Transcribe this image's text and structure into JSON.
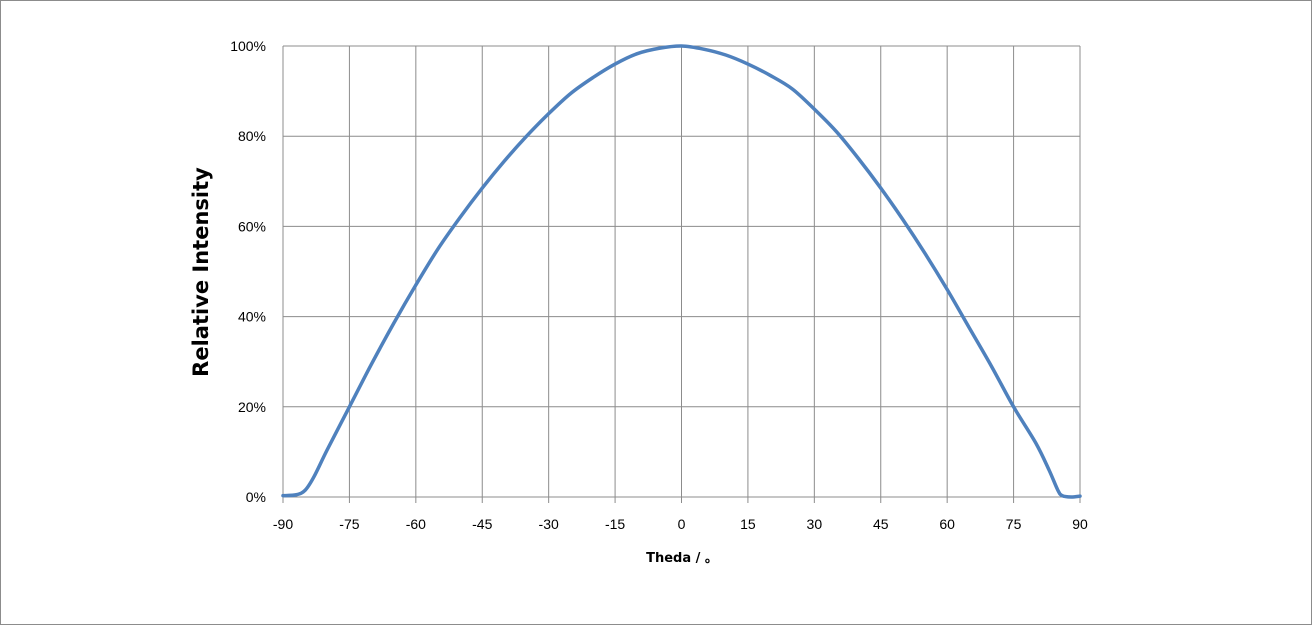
{
  "chart_data": {
    "type": "line",
    "title": "",
    "xlabel": "Theda / 。",
    "ylabel": "Relative Intensity",
    "xlim": [
      -90,
      90
    ],
    "ylim": [
      0,
      100
    ],
    "x_ticks": [
      -90,
      -75,
      -60,
      -45,
      -30,
      -15,
      0,
      15,
      30,
      45,
      60,
      75,
      90
    ],
    "x_tick_labels": [
      "-90",
      "-75",
      "-60",
      "-45",
      "-30",
      "-15",
      "0",
      "15",
      "30",
      "45",
      "60",
      "75",
      "90"
    ],
    "y_ticks": [
      0,
      20,
      40,
      60,
      80,
      100
    ],
    "y_tick_labels": [
      "0%",
      "20%",
      "40%",
      "60%",
      "80%",
      "100%"
    ],
    "grid": true,
    "legend": "none",
    "series_color": "#4f81bd",
    "series": [
      {
        "x": [
          -90,
          -87,
          -85,
          -83,
          -80,
          -75,
          -70,
          -65,
          -60,
          -55,
          -50,
          -45,
          -40,
          -35,
          -30,
          -25,
          -20,
          -15,
          -10,
          -5,
          0,
          5,
          10,
          15,
          20,
          25,
          30,
          35,
          40,
          45,
          50,
          55,
          60,
          65,
          70,
          75,
          80,
          83,
          85,
          86,
          88,
          90
        ],
        "y": [
          0.3,
          0.5,
          1.5,
          4.5,
          10.5,
          20,
          29.5,
          38.5,
          47,
          55,
          62,
          68.5,
          74.5,
          80,
          85,
          89.5,
          93,
          96,
          98.3,
          99.5,
          100,
          99.3,
          98,
          96,
          93.5,
          90.5,
          86,
          81,
          75,
          68.5,
          61.5,
          54,
          46,
          37.5,
          29,
          20,
          12,
          6,
          1.5,
          0.3,
          0,
          0.2
        ]
      }
    ]
  }
}
